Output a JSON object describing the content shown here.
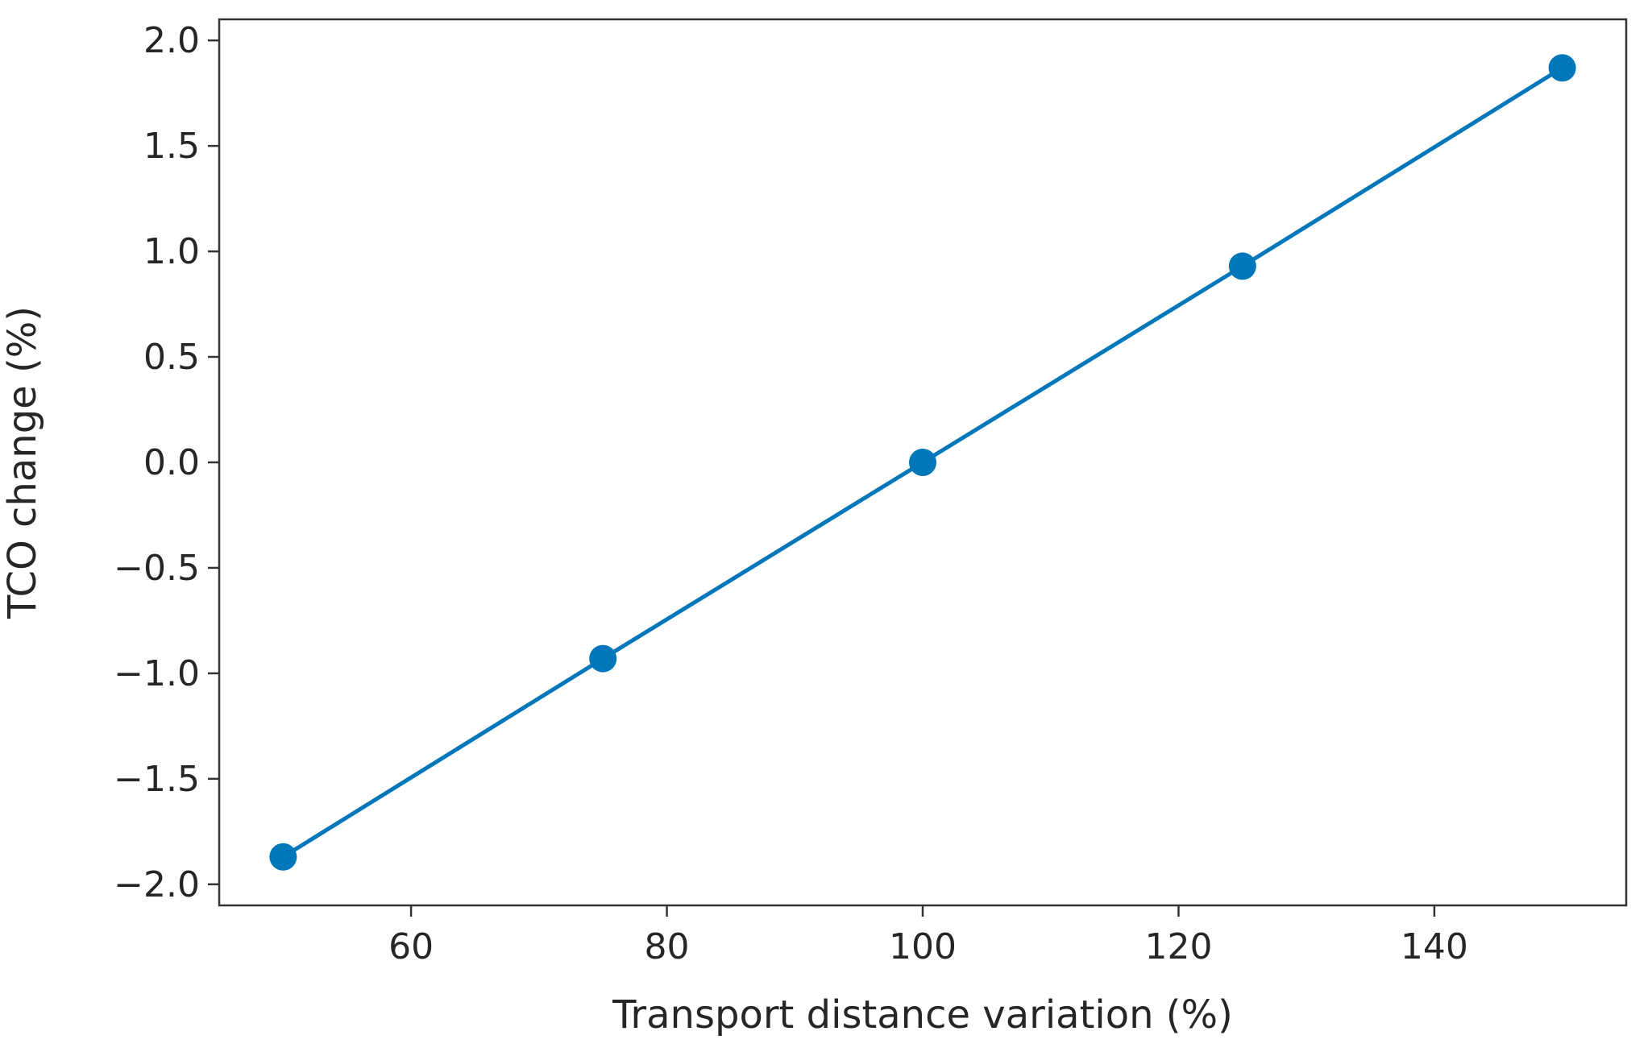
{
  "chart_data": {
    "type": "line",
    "title": "",
    "xlabel": "Transport distance variation (%)",
    "ylabel": "TCO change (%)",
    "xlim": [
      45,
      155
    ],
    "ylim": [
      -2.1,
      2.1
    ],
    "xticks": [
      60,
      80,
      100,
      120,
      140
    ],
    "yticks": [
      -2.0,
      -1.5,
      -1.0,
      -0.5,
      0.0,
      0.5,
      1.0,
      1.5,
      2.0
    ],
    "xtick_labels": [
      "60",
      "80",
      "100",
      "120",
      "140"
    ],
    "ytick_labels": [
      "−2.0",
      "−1.5",
      "−1.0",
      "−0.5",
      "0.0",
      "0.5",
      "1.0",
      "1.5",
      "2.0"
    ],
    "grid": false,
    "legend": "none",
    "series": [
      {
        "color": "#0077bb",
        "marker": "circle",
        "x": [
          50,
          75,
          100,
          125,
          150
        ],
        "y": [
          -1.87,
          -0.93,
          0.0,
          0.93,
          1.87
        ]
      }
    ]
  }
}
